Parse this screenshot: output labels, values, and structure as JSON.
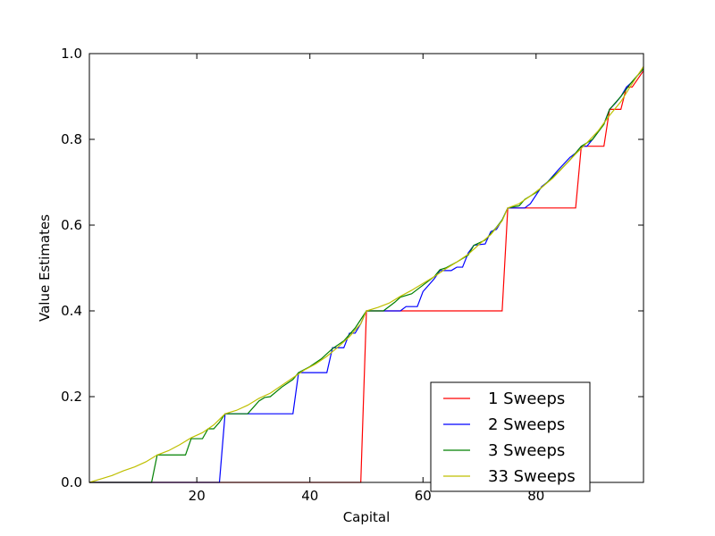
{
  "chart_data": {
    "type": "line",
    "title": "",
    "xlabel": "Capital",
    "ylabel": "Value Estimates",
    "xlim": [
      1,
      99
    ],
    "ylim": [
      0,
      1
    ],
    "xticks": [
      20,
      40,
      60,
      80
    ],
    "yticks": [
      0.0,
      0.2,
      0.4,
      0.6,
      0.8,
      1.0
    ],
    "xtick_labels": [
      "20",
      "40",
      "60",
      "80"
    ],
    "ytick_labels": [
      "0.0",
      "0.2",
      "0.4",
      "0.6",
      "0.8",
      "1.0"
    ],
    "grid": false,
    "legend_position": "bottom-right",
    "series": [
      {
        "name": "1 Sweeps",
        "color": "#ff0000",
        "points": [
          [
            1,
            0
          ],
          [
            49,
            0
          ],
          [
            50,
            0.4
          ],
          [
            74,
            0.4
          ],
          [
            75,
            0.64
          ],
          [
            87,
            0.64
          ],
          [
            88,
            0.784
          ],
          [
            92,
            0.784
          ],
          [
            93,
            0.87
          ],
          [
            95,
            0.87
          ],
          [
            96,
            0.922
          ],
          [
            97,
            0.922
          ],
          [
            99,
            0.96
          ]
        ]
      },
      {
        "name": "2 Sweeps",
        "color": "#0000ff",
        "points": [
          [
            1,
            0
          ],
          [
            24,
            0
          ],
          [
            25,
            0.16
          ],
          [
            37,
            0.16
          ],
          [
            38,
            0.256
          ],
          [
            43,
            0.256
          ],
          [
            44,
            0.314
          ],
          [
            46,
            0.314
          ],
          [
            47,
            0.348
          ],
          [
            48,
            0.348
          ],
          [
            49,
            0.37
          ],
          [
            50,
            0.4
          ],
          [
            56,
            0.4
          ],
          [
            57,
            0.41
          ],
          [
            59,
            0.41
          ],
          [
            60,
            0.445
          ],
          [
            62,
            0.475
          ],
          [
            63,
            0.494
          ],
          [
            65,
            0.494
          ],
          [
            66,
            0.502
          ],
          [
            67,
            0.502
          ],
          [
            68,
            0.535
          ],
          [
            69,
            0.553
          ],
          [
            71,
            0.556
          ],
          [
            72,
            0.585
          ],
          [
            73,
            0.59
          ],
          [
            74,
            0.612
          ],
          [
            75,
            0.64
          ],
          [
            78,
            0.64
          ],
          [
            79,
            0.65
          ],
          [
            81,
            0.69
          ],
          [
            82,
            0.7
          ],
          [
            84,
            0.73
          ],
          [
            86,
            0.758
          ],
          [
            87,
            0.768
          ],
          [
            88,
            0.784
          ],
          [
            89,
            0.784
          ],
          [
            90,
            0.8
          ],
          [
            91,
            0.818
          ],
          [
            92,
            0.836
          ],
          [
            93,
            0.87
          ],
          [
            94,
            0.884
          ],
          [
            95,
            0.9
          ],
          [
            96,
            0.922
          ],
          [
            97,
            0.934
          ],
          [
            99,
            0.965
          ]
        ]
      },
      {
        "name": "3 Sweeps",
        "color": "#008000",
        "points": [
          [
            1,
            0
          ],
          [
            12,
            0
          ],
          [
            13,
            0.064
          ],
          [
            18,
            0.064
          ],
          [
            19,
            0.102
          ],
          [
            21,
            0.102
          ],
          [
            22,
            0.125
          ],
          [
            23,
            0.125
          ],
          [
            24,
            0.14
          ],
          [
            25,
            0.16
          ],
          [
            29,
            0.16
          ],
          [
            31,
            0.19
          ],
          [
            32,
            0.198
          ],
          [
            33,
            0.2
          ],
          [
            35,
            0.222
          ],
          [
            37,
            0.24
          ],
          [
            38,
            0.256
          ],
          [
            40,
            0.27
          ],
          [
            42,
            0.288
          ],
          [
            44,
            0.312
          ],
          [
            46,
            0.33
          ],
          [
            48,
            0.36
          ],
          [
            50,
            0.4
          ],
          [
            53,
            0.4
          ],
          [
            55,
            0.42
          ],
          [
            56,
            0.432
          ],
          [
            58,
            0.44
          ],
          [
            60,
            0.46
          ],
          [
            62,
            0.48
          ],
          [
            63,
            0.496
          ],
          [
            64,
            0.5
          ],
          [
            66,
            0.514
          ],
          [
            68,
            0.53
          ],
          [
            69,
            0.553
          ],
          [
            71,
            0.565
          ],
          [
            73,
            0.595
          ],
          [
            74,
            0.612
          ],
          [
            75,
            0.64
          ],
          [
            77,
            0.645
          ],
          [
            78,
            0.66
          ],
          [
            80,
            0.676
          ],
          [
            82,
            0.7
          ],
          [
            84,
            0.725
          ],
          [
            86,
            0.752
          ],
          [
            88,
            0.784
          ],
          [
            90,
            0.8
          ],
          [
            92,
            0.835
          ],
          [
            93,
            0.87
          ],
          [
            95,
            0.9
          ],
          [
            97,
            0.935
          ],
          [
            99,
            0.965
          ]
        ]
      },
      {
        "name": "33 Sweeps",
        "color": "#bfbf00",
        "points": [
          [
            1,
            0
          ],
          [
            3,
            0.008
          ],
          [
            5,
            0.016
          ],
          [
            7,
            0.027
          ],
          [
            9,
            0.036
          ],
          [
            11,
            0.048
          ],
          [
            13,
            0.064
          ],
          [
            15,
            0.074
          ],
          [
            17,
            0.088
          ],
          [
            19,
            0.104
          ],
          [
            21,
            0.116
          ],
          [
            23,
            0.134
          ],
          [
            25,
            0.16
          ],
          [
            27,
            0.168
          ],
          [
            29,
            0.18
          ],
          [
            31,
            0.196
          ],
          [
            33,
            0.208
          ],
          [
            35,
            0.226
          ],
          [
            37,
            0.244
          ],
          [
            39,
            0.262
          ],
          [
            41,
            0.276
          ],
          [
            43,
            0.294
          ],
          [
            45,
            0.316
          ],
          [
            47,
            0.34
          ],
          [
            49,
            0.37
          ],
          [
            50,
            0.4
          ],
          [
            52,
            0.408
          ],
          [
            54,
            0.418
          ],
          [
            56,
            0.434
          ],
          [
            58,
            0.448
          ],
          [
            60,
            0.464
          ],
          [
            62,
            0.48
          ],
          [
            64,
            0.498
          ],
          [
            66,
            0.514
          ],
          [
            68,
            0.532
          ],
          [
            70,
            0.556
          ],
          [
            72,
            0.578
          ],
          [
            74,
            0.61
          ],
          [
            75,
            0.64
          ],
          [
            77,
            0.65
          ],
          [
            79,
            0.668
          ],
          [
            81,
            0.688
          ],
          [
            83,
            0.71
          ],
          [
            85,
            0.738
          ],
          [
            87,
            0.766
          ],
          [
            89,
            0.792
          ],
          [
            91,
            0.82
          ],
          [
            93,
            0.856
          ],
          [
            95,
            0.888
          ],
          [
            97,
            0.93
          ],
          [
            99,
            0.97
          ]
        ]
      }
    ]
  }
}
